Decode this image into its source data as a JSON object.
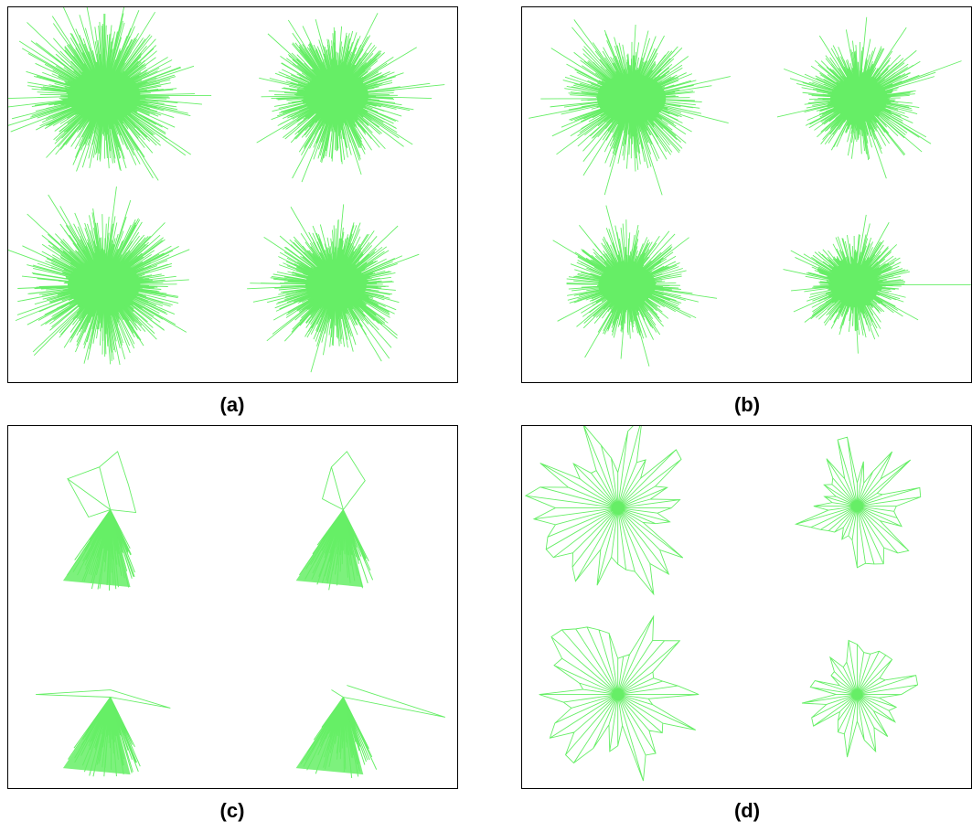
{
  "figure": {
    "stroke_color": "#66ee66",
    "fill_color": "#66ee66",
    "frame_color": "#000000",
    "panels": [
      {
        "id": "a",
        "caption": "(a)"
      },
      {
        "id": "b",
        "caption": "(b)"
      },
      {
        "id": "c",
        "caption": "(c)"
      },
      {
        "id": "d",
        "caption": "(d)"
      }
    ]
  }
}
